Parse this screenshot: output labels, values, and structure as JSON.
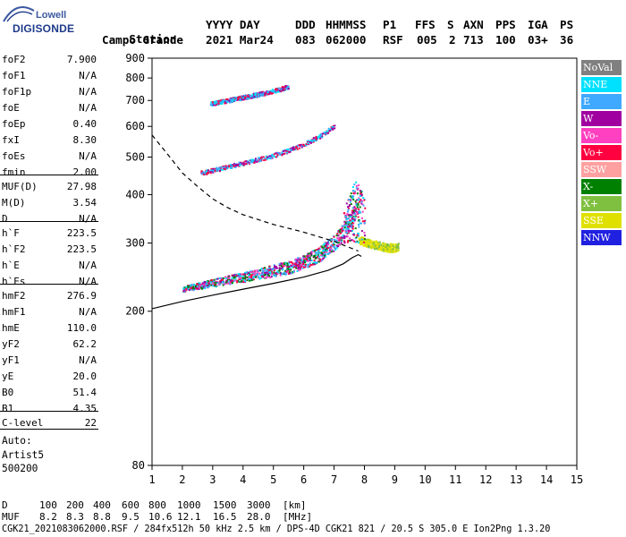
{
  "logo": {
    "line1": "Lowell",
    "line2": "DIGISONDE"
  },
  "header": {
    "row1": [
      "Station",
      "YYYY DAY",
      "DDD",
      "HHMMSS",
      "P1",
      "FFS",
      "S",
      "AXN",
      "PPS",
      "IGA",
      "PS"
    ],
    "row2": [
      "Campo Grande",
      "2021 Mar24",
      "083",
      "062000",
      "RSF",
      "005",
      "2",
      "713",
      "100",
      "03+",
      "36"
    ]
  },
  "params": [
    {
      "name": "foF2",
      "value": "7.900"
    },
    {
      "name": "foF1",
      "value": "N/A"
    },
    {
      "name": "foF1p",
      "value": "N/A"
    },
    {
      "name": "foE",
      "value": "N/A"
    },
    {
      "name": "foEp",
      "value": "0.40"
    },
    {
      "name": "fxI",
      "value": "8.30"
    },
    {
      "name": "foEs",
      "value": "N/A"
    },
    {
      "name": "fmin",
      "value": "2.00"
    },
    {
      "name": "MUF(D)",
      "value": "27.98"
    },
    {
      "name": "M(D)",
      "value": "3.54"
    },
    {
      "name": "D",
      "value": "N/A"
    },
    {
      "name": "h`F",
      "value": "223.5"
    },
    {
      "name": "h`F2",
      "value": "223.5"
    },
    {
      "name": "h`E",
      "value": "N/A"
    },
    {
      "name": "h`Es",
      "value": "N/A"
    },
    {
      "name": "hmF2",
      "value": "276.9"
    },
    {
      "name": "hmF1",
      "value": "N/A"
    },
    {
      "name": "hmE",
      "value": "110.0"
    },
    {
      "name": "yF2",
      "value": "62.2"
    },
    {
      "name": "yF1",
      "value": "N/A"
    },
    {
      "name": "yE",
      "value": "20.0"
    },
    {
      "name": "B0",
      "value": "51.4"
    },
    {
      "name": "B1",
      "value": "4.35"
    },
    {
      "name": "C-level",
      "value": "22"
    }
  ],
  "autoscale": {
    "line1": "Auto:",
    "line2": "Artist5",
    "line3": "500200"
  },
  "legend": [
    {
      "label": "NoVal",
      "color": "#808080"
    },
    {
      "label": "NNE",
      "color": "#00e0ff"
    },
    {
      "label": "E",
      "color": "#3fa8ff"
    },
    {
      "label": "W",
      "color": "#a000a0"
    },
    {
      "label": "Vo-",
      "color": "#ff40c0"
    },
    {
      "label": "Vo+",
      "color": "#ff0040"
    },
    {
      "label": "SSW",
      "color": "#ffa0a0"
    },
    {
      "label": "X-",
      "color": "#008000"
    },
    {
      "label": "X+",
      "color": "#80c040"
    },
    {
      "label": "SSE",
      "color": "#e0e000"
    },
    {
      "label": "NNW",
      "color": "#2020e0"
    }
  ],
  "footer": {
    "row1_label": "D",
    "row1_values": [
      "100",
      "200",
      "400",
      "600",
      "800",
      "1000",
      "1500",
      "3000"
    ],
    "row1_unit": "[km]",
    "row2_label": "MUF",
    "row2_values": [
      "8.2",
      "8.3",
      "8.8",
      "9.5",
      "10.6",
      "12.1",
      "16.5",
      "28.0"
    ],
    "row2_unit": "[MHz]",
    "info": "CGK21_2021083062000.RSF / 284fx512h 50 kHz 2.5 km / DPS-4D CGK21 821 / 20.5 S 305.0 E Ion2Png 1.3.20"
  },
  "chart_data": {
    "type": "scatter",
    "xlabel": "",
    "ylabel": "",
    "xlim": [
      1,
      15
    ],
    "ylim": [
      80,
      900
    ],
    "x_ticks": [
      1,
      2,
      3,
      4,
      5,
      6,
      7,
      8,
      9,
      10,
      11,
      12,
      13,
      14,
      15
    ],
    "y_ticks": [
      80,
      200,
      300,
      400,
      500,
      600,
      700,
      800,
      900
    ],
    "y_scale": "log",
    "grid": false,
    "traces": [
      {
        "name": "o-trace F2",
        "x": [
          2.0,
          2.5,
          3.0,
          3.5,
          4.0,
          4.5,
          5.0,
          5.5,
          6.0,
          6.5,
          7.0,
          7.3,
          7.6,
          7.9
        ],
        "y": [
          228,
          232,
          236,
          240,
          244,
          248,
          253,
          258,
          266,
          278,
          298,
          318,
          345,
          395
        ]
      },
      {
        "name": "x-trace F2",
        "x": [
          7.8,
          8.0,
          8.3,
          8.6,
          8.9,
          9.1
        ],
        "y": [
          305,
          300,
          296,
          292,
          290,
          292
        ]
      },
      {
        "name": "multi-hop 2F",
        "x": [
          2.6,
          3.0,
          3.5,
          4.0,
          4.5,
          5.0,
          5.5,
          6.0,
          6.5,
          7.0
        ],
        "y": [
          455,
          462,
          472,
          482,
          493,
          505,
          520,
          540,
          565,
          600
        ]
      },
      {
        "name": "multi-hop 3F",
        "x": [
          2.9,
          3.5,
          4.0,
          4.5,
          5.0,
          5.5
        ],
        "y": [
          685,
          700,
          713,
          726,
          740,
          760
        ]
      }
    ],
    "profile": [
      {
        "name": "true height profile (solid)",
        "x": [
          1.0,
          2.0,
          3.0,
          4.0,
          5.0,
          6.0,
          6.8,
          7.3,
          7.6,
          7.8,
          7.9
        ],
        "y": [
          203,
          212,
          220,
          228,
          236,
          245,
          255,
          265,
          275,
          280,
          277
        ]
      },
      {
        "name": "model profile (dashed)",
        "x": [
          1.0,
          1.5,
          2.0,
          2.5,
          3.0,
          3.5,
          4.0,
          5.0,
          6.0,
          7.0,
          7.8
        ],
        "y": [
          570,
          510,
          455,
          420,
          390,
          370,
          355,
          335,
          320,
          303,
          286
        ]
      }
    ]
  }
}
